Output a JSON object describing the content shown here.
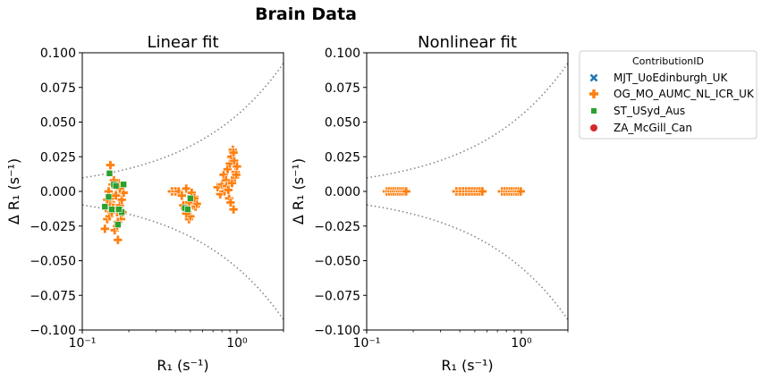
{
  "title": "Brain Data",
  "legend": {
    "title": "ContributionID",
    "items": [
      {
        "label": "MJT_UoEdinburgh_UK",
        "marker": "x-mark",
        "color": "#1f77b4"
      },
      {
        "label": "OG_MO_AUMC_NL_ICR_UK",
        "marker": "plus-mark",
        "color": "#ff7f0e"
      },
      {
        "label": "ST_USyd_Aus",
        "marker": "square-mark",
        "color": "#2ca02c"
      },
      {
        "label": "ZA_McGill_Can",
        "marker": "circle-mark",
        "color": "#d62728"
      }
    ]
  },
  "chart_data": [
    {
      "type": "scatter",
      "title": "Linear fit",
      "xlabel": "R₁ (s⁻¹)",
      "ylabel": "Δ R₁ (s⁻¹)",
      "xscale": "log",
      "xlim": [
        0.1,
        2.0
      ],
      "ylim": [
        -0.1,
        0.1
      ],
      "xticks": [
        {
          "value": 0.1,
          "label": "10⁻¹"
        },
        {
          "value": 1.0,
          "label": "10⁰"
        }
      ],
      "yticks": [
        {
          "value": 0.1,
          "label": "0.100"
        },
        {
          "value": 0.075,
          "label": "0.075"
        },
        {
          "value": 0.05,
          "label": "0.050"
        },
        {
          "value": 0.025,
          "label": "0.025"
        },
        {
          "value": 0.0,
          "label": "0.000"
        },
        {
          "value": -0.025,
          "label": "−0.025"
        },
        {
          "value": -0.05,
          "label": "−0.050"
        },
        {
          "value": -0.075,
          "label": "−0.075"
        },
        {
          "value": -0.1,
          "label": "−0.100"
        }
      ],
      "grid": false,
      "reference_curves": {
        "style": "dotted",
        "color": "#808080",
        "k": 0.055,
        "description": "±0.055·R1^0.75"
      },
      "series": [
        {
          "name": "OG_MO_AUMC_NL_ICR_UK",
          "marker": "plus",
          "color": "#ff7f0e",
          "x": [
            0.14,
            0.142,
            0.145,
            0.148,
            0.15,
            0.152,
            0.155,
            0.157,
            0.16,
            0.162,
            0.165,
            0.168,
            0.17,
            0.172,
            0.175,
            0.178,
            0.18,
            0.182,
            0.185,
            0.15,
            0.16,
            0.17,
            0.155,
            0.165,
            0.175,
            0.145,
            0.158,
            0.168,
            0.38,
            0.4,
            0.42,
            0.44,
            0.46,
            0.47,
            0.48,
            0.49,
            0.5,
            0.51,
            0.52,
            0.53,
            0.54,
            0.55,
            0.45,
            0.47,
            0.49,
            0.51,
            0.53,
            0.75,
            0.78,
            0.8,
            0.82,
            0.85,
            0.87,
            0.9,
            0.92,
            0.94,
            0.96,
            0.98,
            1.0,
            0.83,
            0.86,
            0.89,
            0.93,
            0.95,
            0.97,
            0.91,
            0.88,
            0.95,
            0.99
          ],
          "y": [
            -0.027,
            -0.012,
            -0.02,
            0.0,
            -0.018,
            0.019,
            -0.005,
            0.005,
            -0.01,
            -0.028,
            -0.002,
            -0.015,
            -0.035,
            0.006,
            -0.01,
            -0.02,
            -0.006,
            -0.015,
            -0.001,
            -0.009,
            0.008,
            -0.022,
            -0.015,
            -0.003,
            0.002,
            -0.006,
            -0.012,
            -0.025,
            0.0,
            0.0,
            0.0,
            -0.003,
            -0.012,
            0.002,
            -0.015,
            -0.02,
            -0.018,
            -0.006,
            -0.01,
            -0.004,
            -0.011,
            -0.009,
            -0.01,
            -0.016,
            -0.008,
            -0.001,
            -0.005,
            0.003,
            -0.002,
            0.005,
            0.012,
            0.008,
            0.016,
            0.02,
            0.025,
            0.03,
            0.022,
            0.014,
            0.018,
            0.0,
            0.004,
            -0.005,
            0.006,
            -0.013,
            0.01,
            -0.008,
            0.001,
            0.028,
            0.012
          ]
        },
        {
          "name": "ST_USyd_Aus",
          "marker": "square",
          "color": "#2ca02c",
          "x": [
            0.14,
            0.15,
            0.155,
            0.16,
            0.165,
            0.17,
            0.175,
            0.18,
            0.185,
            0.46,
            0.5,
            0.48,
            0.148,
            0.172
          ],
          "y": [
            -0.011,
            0.013,
            -0.013,
            0.005,
            0.004,
            -0.024,
            -0.013,
            -0.015,
            0.005,
            -0.012,
            -0.005,
            -0.013,
            -0.004,
            -0.013
          ]
        },
        {
          "name": "MJT_UoEdinburgh_UK",
          "marker": "x",
          "color": "#1f77b4",
          "x": [],
          "y": []
        },
        {
          "name": "ZA_McGill_Can",
          "marker": "circle",
          "color": "#d62728",
          "x": [],
          "y": []
        }
      ]
    },
    {
      "type": "scatter",
      "title": "Nonlinear fit",
      "xlabel": "R₁ (s⁻¹)",
      "ylabel": "Δ R₁ (s⁻¹)",
      "xscale": "log",
      "xlim": [
        0.1,
        2.0
      ],
      "ylim": [
        -0.1,
        0.1
      ],
      "xticks": [
        {
          "value": 0.1,
          "label": "10⁻¹"
        },
        {
          "value": 1.0,
          "label": "10⁰"
        }
      ],
      "yticks": [
        {
          "value": 0.1,
          "label": "0.100"
        },
        {
          "value": 0.075,
          "label": "0.075"
        },
        {
          "value": 0.05,
          "label": "0.050"
        },
        {
          "value": 0.025,
          "label": "0.025"
        },
        {
          "value": 0.0,
          "label": "0.000"
        },
        {
          "value": -0.025,
          "label": "−0.025"
        },
        {
          "value": -0.05,
          "label": "−0.050"
        },
        {
          "value": -0.075,
          "label": "−0.075"
        },
        {
          "value": -0.1,
          "label": "−0.100"
        }
      ],
      "grid": false,
      "reference_curves": {
        "style": "dotted",
        "color": "#808080",
        "k": 0.055,
        "description": "±0.055·R1^0.75"
      },
      "series": [
        {
          "name": "OG_MO_AUMC_NL_ICR_UK",
          "marker": "plus",
          "color": "#ff7f0e",
          "x": [
            0.135,
            0.14,
            0.145,
            0.15,
            0.155,
            0.16,
            0.165,
            0.17,
            0.175,
            0.18,
            0.38,
            0.4,
            0.42,
            0.44,
            0.46,
            0.48,
            0.5,
            0.52,
            0.54,
            0.56,
            0.75,
            0.78,
            0.81,
            0.84,
            0.87,
            0.9,
            0.93,
            0.96,
            0.99
          ],
          "y": [
            0,
            0,
            0,
            0,
            0,
            0,
            0,
            0,
            0,
            0,
            0,
            0,
            0,
            0,
            0,
            0,
            0,
            0,
            0,
            0,
            0,
            0,
            0,
            0,
            0,
            0,
            0,
            0,
            0
          ]
        },
        {
          "name": "ST_USyd_Aus",
          "marker": "square",
          "color": "#2ca02c",
          "x": [],
          "y": []
        },
        {
          "name": "MJT_UoEdinburgh_UK",
          "marker": "x",
          "color": "#1f77b4",
          "x": [],
          "y": []
        },
        {
          "name": "ZA_McGill_Can",
          "marker": "circle",
          "color": "#d62728",
          "x": [],
          "y": []
        }
      ]
    }
  ]
}
